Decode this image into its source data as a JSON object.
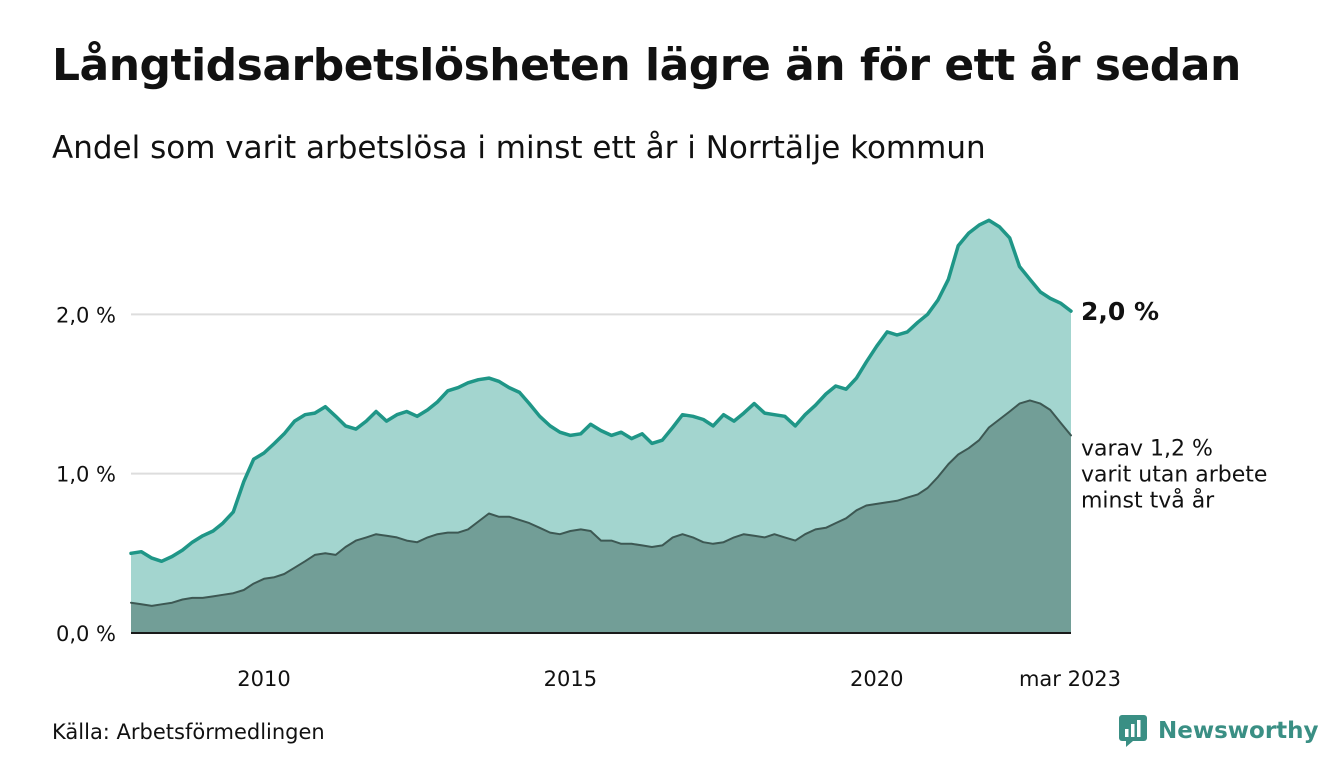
{
  "title": "Långtidsarbetslösheten lägre än för ett år sedan",
  "subtitle": "Andel som varit arbetslösa i minst ett år i Norrtälje kommun",
  "source": "Källa: Arbetsförmedlingen",
  "brand": "Newsworthy",
  "colors": {
    "area_total": "#a3d5cf",
    "line_total": "#1f9687",
    "area_twoyear": "#729e97",
    "line_twoyear": "#3d5853",
    "grid": "#dddddd",
    "brand": "#3a8f84"
  },
  "annotations": {
    "last_total": "2,0 %",
    "last_twoyear_lines": [
      "varav 1,2 %",
      "varit utan arbete",
      "minst två år"
    ]
  },
  "chart_data": {
    "type": "area",
    "x_axis": {
      "ticks": [
        {
          "x": 2010,
          "label": "2010"
        },
        {
          "x": 2015,
          "label": "2015"
        },
        {
          "x": 2020,
          "label": "2020"
        },
        {
          "x": 2023.17,
          "label": "mar 2023"
        }
      ],
      "range": [
        2007.83,
        2023.17
      ]
    },
    "y_axis": {
      "range": [
        0,
        3.0
      ],
      "ticks": [
        {
          "y": 0,
          "label": "0,0 %"
        },
        {
          "y": 1.0,
          "label": "1,0 %"
        },
        {
          "y": 2.0,
          "label": "2,0 %"
        }
      ],
      "unit": "%",
      "grid": true
    },
    "series": [
      {
        "key": "total",
        "points": [
          [
            2007.83,
            0.5
          ],
          [
            2008.0,
            0.51
          ],
          [
            2008.17,
            0.47
          ],
          [
            2008.33,
            0.45
          ],
          [
            2008.5,
            0.48
          ],
          [
            2008.67,
            0.52
          ],
          [
            2008.83,
            0.57
          ],
          [
            2009.0,
            0.61
          ],
          [
            2009.17,
            0.64
          ],
          [
            2009.33,
            0.69
          ],
          [
            2009.5,
            0.76
          ],
          [
            2009.67,
            0.95
          ],
          [
            2009.83,
            1.09
          ],
          [
            2010.0,
            1.13
          ],
          [
            2010.17,
            1.19
          ],
          [
            2010.33,
            1.25
          ],
          [
            2010.5,
            1.33
          ],
          [
            2010.67,
            1.37
          ],
          [
            2010.83,
            1.38
          ],
          [
            2011.0,
            1.42
          ],
          [
            2011.17,
            1.36
          ],
          [
            2011.33,
            1.3
          ],
          [
            2011.5,
            1.28
          ],
          [
            2011.67,
            1.33
          ],
          [
            2011.83,
            1.39
          ],
          [
            2012.0,
            1.33
          ],
          [
            2012.17,
            1.37
          ],
          [
            2012.33,
            1.39
          ],
          [
            2012.5,
            1.36
          ],
          [
            2012.67,
            1.4
          ],
          [
            2012.83,
            1.45
          ],
          [
            2013.0,
            1.52
          ],
          [
            2013.17,
            1.54
          ],
          [
            2013.33,
            1.57
          ],
          [
            2013.5,
            1.59
          ],
          [
            2013.67,
            1.6
          ],
          [
            2013.83,
            1.58
          ],
          [
            2014.0,
            1.54
          ],
          [
            2014.17,
            1.51
          ],
          [
            2014.33,
            1.44
          ],
          [
            2014.5,
            1.36
          ],
          [
            2014.67,
            1.3
          ],
          [
            2014.83,
            1.26
          ],
          [
            2015.0,
            1.24
          ],
          [
            2015.17,
            1.25
          ],
          [
            2015.33,
            1.31
          ],
          [
            2015.5,
            1.27
          ],
          [
            2015.67,
            1.24
          ],
          [
            2015.83,
            1.26
          ],
          [
            2016.0,
            1.22
          ],
          [
            2016.17,
            1.25
          ],
          [
            2016.33,
            1.19
          ],
          [
            2016.5,
            1.21
          ],
          [
            2016.67,
            1.29
          ],
          [
            2016.83,
            1.37
          ],
          [
            2017.0,
            1.36
          ],
          [
            2017.17,
            1.34
          ],
          [
            2017.33,
            1.3
          ],
          [
            2017.5,
            1.37
          ],
          [
            2017.67,
            1.33
          ],
          [
            2017.83,
            1.38
          ],
          [
            2018.0,
            1.44
          ],
          [
            2018.17,
            1.38
          ],
          [
            2018.33,
            1.37
          ],
          [
            2018.5,
            1.36
          ],
          [
            2018.67,
            1.3
          ],
          [
            2018.83,
            1.37
          ],
          [
            2019.0,
            1.43
          ],
          [
            2019.17,
            1.5
          ],
          [
            2019.33,
            1.55
          ],
          [
            2019.5,
            1.53
          ],
          [
            2019.67,
            1.6
          ],
          [
            2019.83,
            1.7
          ],
          [
            2020.0,
            1.8
          ],
          [
            2020.17,
            1.89
          ],
          [
            2020.33,
            1.87
          ],
          [
            2020.5,
            1.89
          ],
          [
            2020.67,
            1.95
          ],
          [
            2020.83,
            2.0
          ],
          [
            2021.0,
            2.09
          ],
          [
            2021.17,
            2.22
          ],
          [
            2021.33,
            2.43
          ],
          [
            2021.5,
            2.51
          ],
          [
            2021.67,
            2.56
          ],
          [
            2021.83,
            2.59
          ],
          [
            2022.0,
            2.55
          ],
          [
            2022.17,
            2.48
          ],
          [
            2022.33,
            2.3
          ],
          [
            2022.5,
            2.22
          ],
          [
            2022.67,
            2.14
          ],
          [
            2022.83,
            2.1
          ],
          [
            2023.0,
            2.07
          ],
          [
            2023.17,
            2.02
          ]
        ]
      },
      {
        "key": "twoyear",
        "points": [
          [
            2007.83,
            0.19
          ],
          [
            2008.0,
            0.18
          ],
          [
            2008.17,
            0.17
          ],
          [
            2008.33,
            0.18
          ],
          [
            2008.5,
            0.19
          ],
          [
            2008.67,
            0.21
          ],
          [
            2008.83,
            0.22
          ],
          [
            2009.0,
            0.22
          ],
          [
            2009.17,
            0.23
          ],
          [
            2009.33,
            0.24
          ],
          [
            2009.5,
            0.25
          ],
          [
            2009.67,
            0.27
          ],
          [
            2009.83,
            0.31
          ],
          [
            2010.0,
            0.34
          ],
          [
            2010.17,
            0.35
          ],
          [
            2010.33,
            0.37
          ],
          [
            2010.5,
            0.41
          ],
          [
            2010.67,
            0.45
          ],
          [
            2010.83,
            0.49
          ],
          [
            2011.0,
            0.5
          ],
          [
            2011.17,
            0.49
          ],
          [
            2011.33,
            0.54
          ],
          [
            2011.5,
            0.58
          ],
          [
            2011.67,
            0.6
          ],
          [
            2011.83,
            0.62
          ],
          [
            2012.0,
            0.61
          ],
          [
            2012.17,
            0.6
          ],
          [
            2012.33,
            0.58
          ],
          [
            2012.5,
            0.57
          ],
          [
            2012.67,
            0.6
          ],
          [
            2012.83,
            0.62
          ],
          [
            2013.0,
            0.63
          ],
          [
            2013.17,
            0.63
          ],
          [
            2013.33,
            0.65
          ],
          [
            2013.5,
            0.7
          ],
          [
            2013.67,
            0.75
          ],
          [
            2013.83,
            0.73
          ],
          [
            2014.0,
            0.73
          ],
          [
            2014.17,
            0.71
          ],
          [
            2014.33,
            0.69
          ],
          [
            2014.5,
            0.66
          ],
          [
            2014.67,
            0.63
          ],
          [
            2014.83,
            0.62
          ],
          [
            2015.0,
            0.64
          ],
          [
            2015.17,
            0.65
          ],
          [
            2015.33,
            0.64
          ],
          [
            2015.5,
            0.58
          ],
          [
            2015.67,
            0.58
          ],
          [
            2015.83,
            0.56
          ],
          [
            2016.0,
            0.56
          ],
          [
            2016.17,
            0.55
          ],
          [
            2016.33,
            0.54
          ],
          [
            2016.5,
            0.55
          ],
          [
            2016.67,
            0.6
          ],
          [
            2016.83,
            0.62
          ],
          [
            2017.0,
            0.6
          ],
          [
            2017.17,
            0.57
          ],
          [
            2017.33,
            0.56
          ],
          [
            2017.5,
            0.57
          ],
          [
            2017.67,
            0.6
          ],
          [
            2017.83,
            0.62
          ],
          [
            2018.0,
            0.61
          ],
          [
            2018.17,
            0.6
          ],
          [
            2018.33,
            0.62
          ],
          [
            2018.5,
            0.6
          ],
          [
            2018.67,
            0.58
          ],
          [
            2018.83,
            0.62
          ],
          [
            2019.0,
            0.65
          ],
          [
            2019.17,
            0.66
          ],
          [
            2019.33,
            0.69
          ],
          [
            2019.5,
            0.72
          ],
          [
            2019.67,
            0.77
          ],
          [
            2019.83,
            0.8
          ],
          [
            2020.0,
            0.81
          ],
          [
            2020.17,
            0.82
          ],
          [
            2020.33,
            0.83
          ],
          [
            2020.5,
            0.85
          ],
          [
            2020.67,
            0.87
          ],
          [
            2020.83,
            0.91
          ],
          [
            2021.0,
            0.98
          ],
          [
            2021.17,
            1.06
          ],
          [
            2021.33,
            1.12
          ],
          [
            2021.5,
            1.16
          ],
          [
            2021.67,
            1.21
          ],
          [
            2021.83,
            1.29
          ],
          [
            2022.0,
            1.34
          ],
          [
            2022.17,
            1.39
          ],
          [
            2022.33,
            1.44
          ],
          [
            2022.5,
            1.46
          ],
          [
            2022.67,
            1.44
          ],
          [
            2022.83,
            1.4
          ],
          [
            2023.0,
            1.32
          ],
          [
            2023.17,
            1.24
          ]
        ]
      }
    ]
  }
}
